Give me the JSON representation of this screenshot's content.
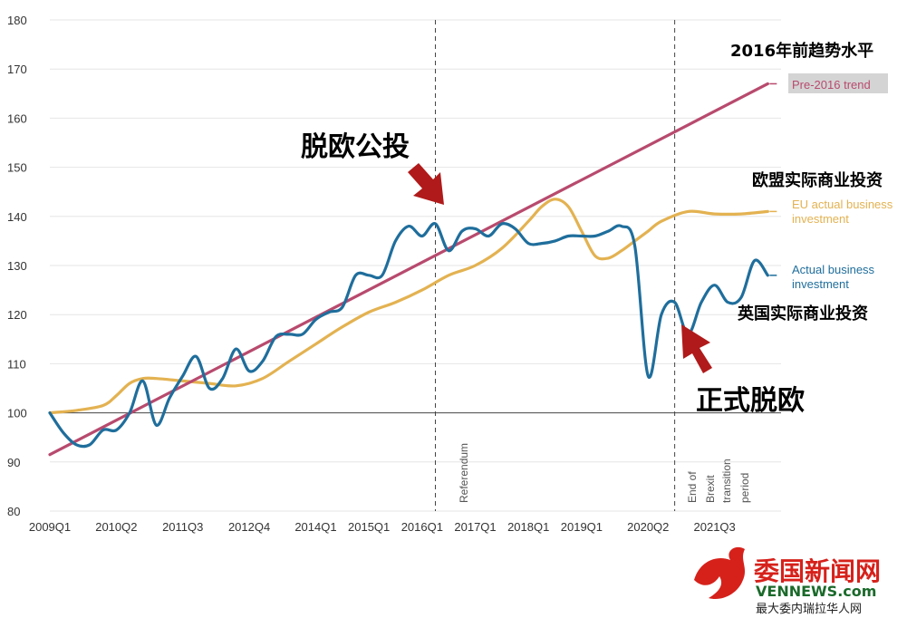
{
  "chart_data": {
    "type": "line",
    "title": "",
    "xlabel": "",
    "ylabel": "",
    "ylim": [
      80,
      180
    ],
    "yticks": [
      80,
      90,
      100,
      110,
      120,
      130,
      140,
      150,
      160,
      170,
      180
    ],
    "xrange": [
      2009.0,
      2022.75
    ],
    "x_tick_labels": [
      {
        "label": "2009Q1",
        "x": 2009.0
      },
      {
        "label": "2010Q2",
        "x": 2010.25
      },
      {
        "label": "2011Q3",
        "x": 2011.5
      },
      {
        "label": "2012Q4",
        "x": 2012.75
      },
      {
        "label": "2014Q1",
        "x": 2014.0
      },
      {
        "label": "2015Q1",
        "x": 2015.0
      },
      {
        "label": "2016Q1",
        "x": 2016.0
      },
      {
        "label": "2017Q1",
        "x": 2017.0
      },
      {
        "label": "2018Q1",
        "x": 2018.0
      },
      {
        "label": "2019Q1",
        "x": 2019.0
      },
      {
        "label": "2020Q2",
        "x": 2020.25
      },
      {
        "label": "2021Q3",
        "x": 2021.5
      }
    ],
    "reference_line": 100,
    "grid": true,
    "vertical_markers": [
      {
        "x": 2016.25,
        "label": "Referendum"
      },
      {
        "x": 2020.75,
        "label": "End of Brexit transition period"
      }
    ],
    "series": [
      {
        "name": "Actual business investment",
        "label_zh": "英国实际商业投资",
        "color": "#1f6e9c",
        "x": [
          2009.0,
          2009.25,
          2009.5,
          2009.75,
          2010.0,
          2010.25,
          2010.5,
          2010.75,
          2011.0,
          2011.25,
          2011.5,
          2011.75,
          2012.0,
          2012.25,
          2012.5,
          2012.75,
          2013.0,
          2013.25,
          2013.5,
          2013.75,
          2014.0,
          2014.25,
          2014.5,
          2014.75,
          2015.0,
          2015.25,
          2015.5,
          2015.75,
          2016.0,
          2016.25,
          2016.5,
          2016.75,
          2017.0,
          2017.25,
          2017.5,
          2017.75,
          2018.0,
          2018.25,
          2018.5,
          2018.75,
          2019.0,
          2019.25,
          2019.5,
          2019.75,
          2020.0,
          2020.25,
          2020.5,
          2020.75,
          2021.0,
          2021.25,
          2021.5,
          2021.75,
          2022.0,
          2022.25,
          2022.5
        ],
        "values": [
          100,
          96,
          93.5,
          93.5,
          96.5,
          96.5,
          100,
          106.5,
          97.5,
          103,
          107.5,
          111.5,
          105,
          107,
          113,
          108.5,
          110.5,
          115.5,
          116,
          116,
          119,
          120.5,
          121.5,
          128,
          128,
          128,
          135,
          138,
          136,
          138.5,
          133,
          137,
          137.5,
          136,
          138.5,
          137.5,
          134.5,
          134.5,
          135,
          136,
          136,
          136,
          137,
          138,
          134,
          107.5,
          120,
          122.5,
          116,
          122.5,
          126,
          122.5,
          123.5,
          131,
          128
        ]
      },
      {
        "name": "EU actual business investment",
        "label_zh": "欧盟实际商业投资",
        "color": "#e3b251",
        "x": [
          2009.0,
          2009.5,
          2010.0,
          2010.25,
          2010.5,
          2010.75,
          2011.0,
          2011.5,
          2012.0,
          2012.5,
          2013.0,
          2013.5,
          2014.0,
          2014.5,
          2015.0,
          2015.5,
          2016.0,
          2016.5,
          2017.0,
          2017.5,
          2018.0,
          2018.25,
          2018.5,
          2018.75,
          2019.0,
          2019.25,
          2019.5,
          2019.75,
          2020.0,
          2020.25,
          2020.5,
          2021.0,
          2021.5,
          2022.0,
          2022.5
        ],
        "values": [
          100,
          100.5,
          101.5,
          103.5,
          106,
          107,
          107,
          106.5,
          106,
          105.5,
          107,
          110.5,
          114,
          117.5,
          120.5,
          122.5,
          125,
          128,
          130,
          133.5,
          139,
          142,
          143.5,
          142,
          137,
          132,
          131.5,
          133,
          135,
          137,
          139,
          141,
          140.5,
          140.5,
          141
        ]
      },
      {
        "name": "Pre-2016 trend",
        "label_zh": "2016年前趋势水平",
        "color": "#b84a6e",
        "x": [
          2009.0,
          2022.5
        ],
        "values": [
          91.5,
          167
        ]
      }
    ],
    "annotations": [
      {
        "text": "脱欧公投"
      },
      {
        "text": "正式脱欧"
      }
    ]
  },
  "legend": {
    "trend_zh": "2016年前趋势水平",
    "trend_en": "Pre-2016 trend",
    "eu_zh": "欧盟实际商业投资",
    "eu_en_1": "EU actual business",
    "eu_en_2": "investment",
    "uk_en_1": "Actual business",
    "uk_en_2": "investment",
    "uk_zh": "英国实际商业投资"
  },
  "annotations": {
    "referendum_zh": "脱欧公投",
    "brexit_zh": "正式脱欧",
    "referendum_label": "Referendum",
    "transition_1": "End of",
    "transition_2": "Brexit",
    "transition_3": "transition",
    "transition_4": "period"
  },
  "watermark": {
    "main": "委国新闻网",
    "url": "VENNEWS.com",
    "tagline": "最大委内瑞拉华人网"
  },
  "colors": {
    "uk": "#1f6e9c",
    "eu": "#e3b251",
    "trend": "#b84a6e",
    "arrow": "#b01a1a",
    "logo_red": "#d6211b"
  }
}
